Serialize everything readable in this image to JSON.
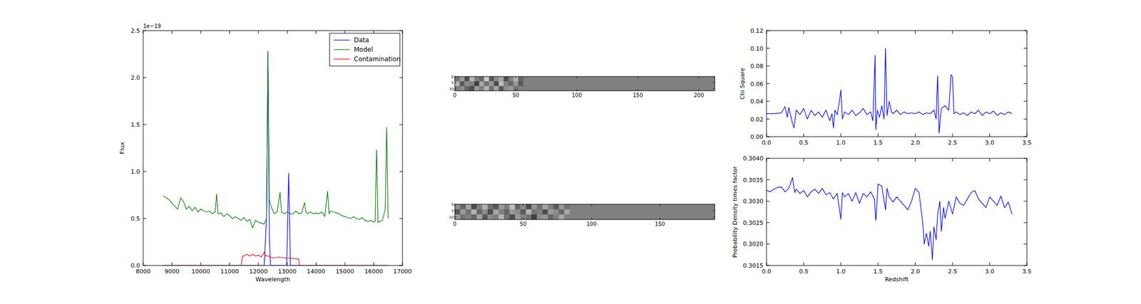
{
  "chart_data": [
    {
      "type": "line",
      "xlabel": "Wavelength",
      "ylabel": "Flux",
      "annotations": [
        {
          "text": "1e−19"
        }
      ],
      "xlim": [
        8000,
        17000
      ],
      "ylim": [
        0,
        2.5
      ],
      "xticks": [
        8000,
        9000,
        10000,
        11000,
        12000,
        13000,
        14000,
        15000,
        16000,
        17000
      ],
      "yticks": [
        {
          "value": 0,
          "label": "0.0"
        },
        0.5,
        {
          "value": 1,
          "label": "1.0"
        },
        1.5,
        {
          "value": 2,
          "label": "2.0"
        },
        2.5
      ],
      "legend": "upper right",
      "series": [
        {
          "name": "Data",
          "color": "#0000ff",
          "x": [
            8700,
            12200,
            12280,
            12330,
            12380,
            12420,
            12980,
            13050,
            13110,
            16500
          ],
          "values": [
            0,
            0,
            0.5,
            2.28,
            0.3,
            0,
            0,
            0.98,
            0,
            0
          ]
        },
        {
          "name": "Model",
          "color": "#008000",
          "x": [
            8700,
            8800,
            8900,
            9000,
            9100,
            9200,
            9300,
            9400,
            9500,
            9600,
            9700,
            9800,
            9900,
            10000,
            10100,
            10200,
            10300,
            10400,
            10500,
            10550,
            10600,
            10700,
            10800,
            10900,
            11000,
            11100,
            11200,
            11300,
            11400,
            11500,
            11600,
            11700,
            11800,
            11900,
            12000,
            12100,
            12200,
            12280,
            12330,
            12380,
            12450,
            12550,
            12650,
            12750,
            12800,
            12900,
            13000,
            13100,
            13200,
            13300,
            13400,
            13500,
            13600,
            13650,
            13700,
            13800,
            13900,
            14000,
            14100,
            14200,
            14300,
            14400,
            14450,
            14500,
            14600,
            14700,
            14800,
            14900,
            15000,
            15100,
            15200,
            15300,
            15400,
            15500,
            15600,
            15700,
            15800,
            15900,
            16000,
            16050,
            16100,
            16150,
            16300,
            16400,
            16450,
            16500
          ],
          "values": [
            0.74,
            0.72,
            0.7,
            0.66,
            0.63,
            0.6,
            0.72,
            0.68,
            0.6,
            0.63,
            0.58,
            0.62,
            0.57,
            0.6,
            0.58,
            0.57,
            0.58,
            0.55,
            0.57,
            0.76,
            0.55,
            0.56,
            0.52,
            0.55,
            0.53,
            0.5,
            0.52,
            0.5,
            0.48,
            0.51,
            0.47,
            0.49,
            0.4,
            0.48,
            0.46,
            0.45,
            0.44,
            0.5,
            2.25,
            0.7,
            0.62,
            0.55,
            0.57,
            0.78,
            0.57,
            0.55,
            0.57,
            0.55,
            0.55,
            0.58,
            0.55,
            0.56,
            0.67,
            0.57,
            0.55,
            0.57,
            0.55,
            0.56,
            0.55,
            0.57,
            0.52,
            0.79,
            0.55,
            0.58,
            0.57,
            0.56,
            0.55,
            0.53,
            0.52,
            0.51,
            0.5,
            0.52,
            0.5,
            0.49,
            0.51,
            0.48,
            0.47,
            0.48,
            0.46,
            0.47,
            1.23,
            0.46,
            0.48,
            0.6,
            1.47,
            0.5
          ]
        },
        {
          "name": "Contamination",
          "color": "#ff0000",
          "x": [
            8700,
            11400,
            11450,
            11500,
            11600,
            11700,
            11800,
            11900,
            12000,
            12100,
            12200,
            12250,
            12350,
            12400,
            12500,
            12700,
            12900,
            13100,
            13300,
            13400,
            13420,
            16500
          ],
          "values": [
            0,
            0,
            0.1,
            0.1,
            0.12,
            0.1,
            0.12,
            0.1,
            0.11,
            0.09,
            0.14,
            0.1,
            0.1,
            0.09,
            0.08,
            0.09,
            0.08,
            0.08,
            0.07,
            0.07,
            0,
            0
          ]
        }
      ]
    },
    {
      "type": "image",
      "xlim": [
        0,
        213
      ],
      "ylim": [
        0,
        12
      ],
      "xticks": [
        0,
        50,
        100,
        150,
        200
      ],
      "yticks": [
        0,
        5,
        10
      ],
      "cells_xlim": [
        0,
        56
      ],
      "cells": [
        [
          0.45,
          0.6,
          0.3,
          0.7,
          0.5,
          0.4,
          0.8,
          0.35,
          0.55,
          0.65,
          0.3,
          0.5,
          0.7,
          0.4
        ],
        [
          0.7,
          0.35,
          0.55,
          0.5,
          0.25,
          0.65,
          0.45,
          0.6,
          0.3,
          0.75,
          0.5,
          0.4,
          0.6,
          0.35
        ],
        [
          0.5,
          0.55,
          0.4,
          0.3,
          0.6,
          0.5,
          0.7,
          0.45,
          0.65,
          0.35,
          0.55,
          0.6,
          0.45,
          0.5
        ]
      ]
    },
    {
      "type": "image",
      "xlim": [
        0,
        190
      ],
      "ylim": [
        0,
        12
      ],
      "xticks": [
        0,
        50,
        100,
        150
      ],
      "yticks": [
        0,
        5,
        10
      ],
      "cells_xlim": [
        0,
        84
      ],
      "cells": [
        [
          0.55,
          0.4,
          0.65,
          0.3,
          0.5,
          0.7,
          0.45,
          0.35,
          0.6,
          0.5,
          0.75,
          0.4,
          0.55,
          0.3,
          0.6,
          0.45,
          0.65,
          0.5,
          0.35,
          0.6,
          0.45
        ],
        [
          0.35,
          0.6,
          0.45,
          0.7,
          0.4,
          0.55,
          0.3,
          0.65,
          0.5,
          0.4,
          0.6,
          0.55,
          0.35,
          0.7,
          0.45,
          0.5,
          0.3,
          0.6,
          0.55,
          0.4,
          0.65
        ],
        [
          0.6,
          0.45,
          0.5,
          0.4,
          0.65,
          0.35,
          0.55,
          0.5,
          0.7,
          0.45,
          0.3,
          0.6,
          0.5,
          0.45,
          0.25,
          0.55,
          0.6,
          0.4,
          0.5,
          0.65,
          0.5
        ]
      ]
    },
    {
      "type": "line",
      "ylabel": "Chi Square",
      "xlim": [
        0,
        3.5
      ],
      "ylim": [
        0,
        0.12
      ],
      "xticks": [
        {
          "value": 0,
          "label": "0.0"
        },
        0.5,
        {
          "value": 1,
          "label": "1.0"
        },
        1.5,
        {
          "value": 2,
          "label": "2.0"
        },
        2.5,
        {
          "value": 3,
          "label": "3.0"
        },
        3.5
      ],
      "yticks": [
        {
          "value": 0,
          "label": "0.00"
        },
        {
          "value": 0.02,
          "label": "0.02"
        },
        {
          "value": 0.04,
          "label": "0.04"
        },
        {
          "value": 0.06,
          "label": "0.06"
        },
        {
          "value": 0.08,
          "label": "0.08"
        },
        {
          "value": 0.1,
          "label": "0.10"
        },
        {
          "value": 0.12,
          "label": "0.12"
        }
      ],
      "series": [
        {
          "color": "#0000ff",
          "x": [
            0,
            0.1,
            0.2,
            0.25,
            0.28,
            0.3,
            0.35,
            0.37,
            0.4,
            0.45,
            0.5,
            0.55,
            0.6,
            0.65,
            0.7,
            0.75,
            0.8,
            0.85,
            0.88,
            0.9,
            0.92,
            0.95,
            0.98,
            1.0,
            1.02,
            1.05,
            1.1,
            1.15,
            1.2,
            1.25,
            1.3,
            1.35,
            1.4,
            1.43,
            1.46,
            1.47,
            1.49,
            1.52,
            1.55,
            1.58,
            1.6,
            1.62,
            1.65,
            1.68,
            1.7,
            1.75,
            1.8,
            1.85,
            1.9,
            1.95,
            2.0,
            2.05,
            2.1,
            2.15,
            2.2,
            2.25,
            2.28,
            2.3,
            2.32,
            2.35,
            2.4,
            2.45,
            2.48,
            2.5,
            2.52,
            2.55,
            2.6,
            2.65,
            2.7,
            2.75,
            2.8,
            2.85,
            2.9,
            2.95,
            3.0,
            3.05,
            3.1,
            3.15,
            3.2,
            3.25,
            3.3
          ],
          "values": [
            0.026,
            0.026,
            0.027,
            0.034,
            0.022,
            0.033,
            0.015,
            0.01,
            0.03,
            0.025,
            0.032,
            0.02,
            0.03,
            0.024,
            0.028,
            0.022,
            0.03,
            0.018,
            0.026,
            0.01,
            0.03,
            0.025,
            0.04,
            0.053,
            0.02,
            0.028,
            0.025,
            0.03,
            0.024,
            0.027,
            0.032,
            0.025,
            0.028,
            0.018,
            0.092,
            0.008,
            0.03,
            0.022,
            0.035,
            0.02,
            0.1,
            0.024,
            0.04,
            0.028,
            0.026,
            0.03,
            0.025,
            0.028,
            0.026,
            0.027,
            0.026,
            0.028,
            0.025,
            0.027,
            0.026,
            0.03,
            0.02,
            0.069,
            0.004,
            0.032,
            0.035,
            0.03,
            0.07,
            0.068,
            0.026,
            0.028,
            0.025,
            0.027,
            0.024,
            0.028,
            0.026,
            0.03,
            0.024,
            0.028,
            0.026,
            0.029,
            0.024,
            0.027,
            0.025,
            0.028,
            0.026
          ]
        }
      ]
    },
    {
      "type": "line",
      "xlabel": "Redshift",
      "ylabel": "Probability Density times factor",
      "xlim": [
        0,
        3.5
      ],
      "ylim": [
        0.3015,
        0.304
      ],
      "xticks": [
        {
          "value": 0,
          "label": "0.0"
        },
        0.5,
        {
          "value": 1,
          "label": "1.0"
        },
        1.5,
        {
          "value": 2,
          "label": "2.0"
        },
        2.5,
        {
          "value": 3,
          "label": "3.0"
        },
        3.5
      ],
      "yticks": [
        0.3015,
        {
          "value": 0.302,
          "label": "0.3020"
        },
        0.3025,
        {
          "value": 0.303,
          "label": "0.3030"
        },
        0.3035,
        {
          "value": 0.304,
          "label": "0.3040"
        }
      ],
      "series": [
        {
          "color": "#0000ff",
          "x": [
            0,
            0.05,
            0.1,
            0.15,
            0.2,
            0.25,
            0.3,
            0.35,
            0.38,
            0.4,
            0.45,
            0.5,
            0.55,
            0.6,
            0.65,
            0.7,
            0.75,
            0.8,
            0.85,
            0.9,
            0.95,
            1.0,
            1.02,
            1.05,
            1.1,
            1.15,
            1.2,
            1.25,
            1.3,
            1.35,
            1.4,
            1.45,
            1.47,
            1.5,
            1.55,
            1.6,
            1.62,
            1.65,
            1.7,
            1.75,
            1.8,
            1.85,
            1.9,
            1.95,
            2.0,
            2.05,
            2.1,
            2.12,
            2.15,
            2.18,
            2.2,
            2.23,
            2.25,
            2.28,
            2.3,
            2.33,
            2.35,
            2.38,
            2.4,
            2.45,
            2.5,
            2.55,
            2.6,
            2.65,
            2.7,
            2.75,
            2.8,
            2.85,
            2.9,
            2.95,
            3.0,
            3.05,
            3.1,
            3.15,
            3.2,
            3.25,
            3.3
          ],
          "values": [
            0.30325,
            0.30322,
            0.30328,
            0.30332,
            0.30333,
            0.30322,
            0.3033,
            0.30355,
            0.3032,
            0.30328,
            0.30318,
            0.30325,
            0.3031,
            0.30322,
            0.30328,
            0.30318,
            0.3033,
            0.30315,
            0.3032,
            0.30305,
            0.30318,
            0.30258,
            0.3032,
            0.3031,
            0.30318,
            0.303,
            0.3032,
            0.30295,
            0.30318,
            0.3031,
            0.30322,
            0.30305,
            0.30255,
            0.3034,
            0.30335,
            0.3028,
            0.3033,
            0.3031,
            0.30298,
            0.3031,
            0.303,
            0.3029,
            0.3028,
            0.303,
            0.3033,
            0.3032,
            0.3025,
            0.302,
            0.30225,
            0.30195,
            0.3023,
            0.30163,
            0.3024,
            0.3021,
            0.30268,
            0.303,
            0.3023,
            0.30285,
            0.3026,
            0.303,
            0.3027,
            0.3031,
            0.30295,
            0.3029,
            0.30305,
            0.3032,
            0.30325,
            0.30305,
            0.30295,
            0.30285,
            0.3031,
            0.303,
            0.3029,
            0.30312,
            0.30285,
            0.30298,
            0.3027
          ]
        }
      ]
    }
  ]
}
